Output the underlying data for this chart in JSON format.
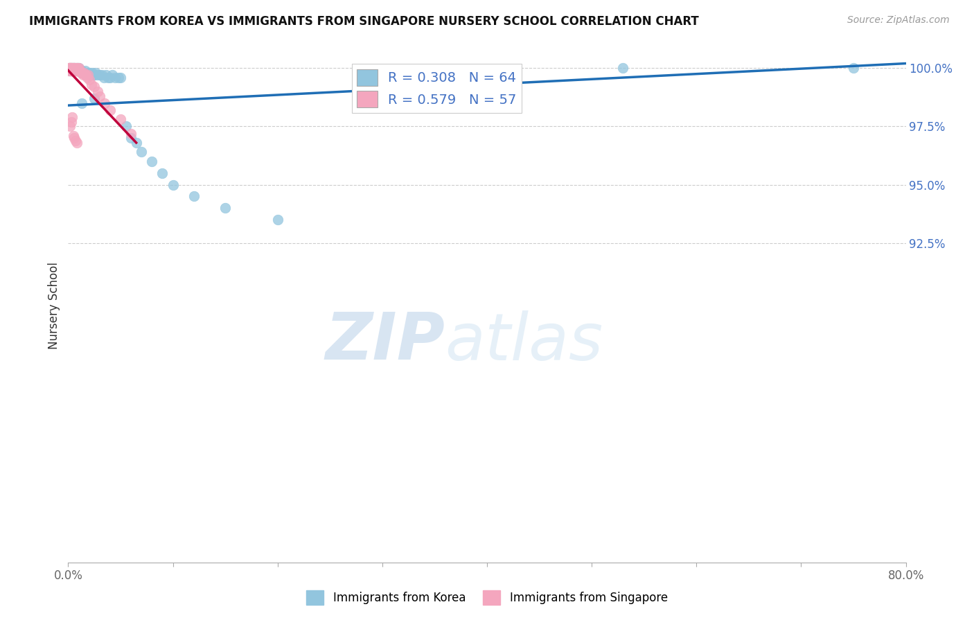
{
  "title": "IMMIGRANTS FROM KOREA VS IMMIGRANTS FROM SINGAPORE NURSERY SCHOOL CORRELATION CHART",
  "source_text": "Source: ZipAtlas.com",
  "ylabel": "Nursery School",
  "legend_label_korea": "Immigrants from Korea",
  "legend_label_singapore": "Immigrants from Singapore",
  "R_korea": "0.308",
  "N_korea": "64",
  "R_singapore": "0.579",
  "N_singapore": "57",
  "korea_scatter_color": "#92c5de",
  "singapore_scatter_color": "#f4a6be",
  "korea_line_color": "#1f6eb5",
  "singapore_line_color": "#c0003c",
  "text_blue": "#4472C4",
  "xmin": 0.0,
  "xmax": 0.8,
  "ymin": 0.788,
  "ymax": 1.008,
  "grid_yticks": [
    0.925,
    0.95,
    0.975,
    1.0
  ],
  "grid_ytick_labels": [
    "92.5%",
    "95.0%",
    "97.5%",
    "100.0%"
  ],
  "xtick_positions": [
    0.0,
    0.1,
    0.2,
    0.3,
    0.4,
    0.5,
    0.6,
    0.7,
    0.8
  ],
  "xtick_labels": [
    "0.0%",
    "",
    "",
    "",
    "",
    "",
    "",
    "",
    "80.0%"
  ],
  "watermark_zip": "ZIP",
  "watermark_atlas": "atlas",
  "korea_x": [
    0.001,
    0.002,
    0.002,
    0.003,
    0.003,
    0.003,
    0.004,
    0.004,
    0.005,
    0.005,
    0.005,
    0.006,
    0.006,
    0.007,
    0.007,
    0.008,
    0.008,
    0.008,
    0.009,
    0.009,
    0.01,
    0.01,
    0.011,
    0.012,
    0.013,
    0.013,
    0.014,
    0.015,
    0.016,
    0.017,
    0.018,
    0.019,
    0.02,
    0.021,
    0.022,
    0.023,
    0.024,
    0.025,
    0.026,
    0.028,
    0.03,
    0.032,
    0.034,
    0.036,
    0.038,
    0.04,
    0.042,
    0.045,
    0.048,
    0.05,
    0.055,
    0.06,
    0.065,
    0.07,
    0.08,
    0.09,
    0.1,
    0.12,
    0.15,
    0.2,
    0.53,
    0.75,
    0.013,
    0.025
  ],
  "korea_y": [
    0.999,
    0.999,
    1.0,
    0.999,
    0.999,
    1.0,
    0.999,
    1.0,
    0.999,
    0.999,
    1.0,
    0.999,
    1.0,
    0.999,
    1.0,
    0.999,
    0.999,
    1.0,
    0.999,
    1.0,
    0.999,
    1.0,
    0.999,
    0.999,
    0.998,
    0.999,
    0.998,
    0.998,
    0.999,
    0.998,
    0.998,
    0.998,
    0.997,
    0.998,
    0.997,
    0.998,
    0.997,
    0.997,
    0.998,
    0.997,
    0.997,
    0.997,
    0.996,
    0.997,
    0.996,
    0.996,
    0.997,
    0.996,
    0.996,
    0.996,
    0.975,
    0.97,
    0.968,
    0.964,
    0.96,
    0.955,
    0.95,
    0.945,
    0.94,
    0.935,
    1.0,
    1.0,
    0.985,
    0.987
  ],
  "singapore_x": [
    0.001,
    0.001,
    0.001,
    0.001,
    0.002,
    0.002,
    0.002,
    0.002,
    0.003,
    0.003,
    0.003,
    0.003,
    0.003,
    0.004,
    0.004,
    0.004,
    0.005,
    0.005,
    0.005,
    0.005,
    0.006,
    0.006,
    0.006,
    0.007,
    0.007,
    0.007,
    0.008,
    0.008,
    0.009,
    0.009,
    0.01,
    0.01,
    0.011,
    0.012,
    0.013,
    0.014,
    0.015,
    0.016,
    0.017,
    0.018,
    0.019,
    0.02,
    0.022,
    0.025,
    0.028,
    0.03,
    0.035,
    0.04,
    0.05,
    0.06,
    0.002,
    0.003,
    0.004,
    0.005,
    0.006,
    0.007,
    0.008
  ],
  "singapore_y": [
    1.0,
    1.0,
    1.0,
    0.999,
    1.0,
    1.0,
    0.999,
    1.0,
    1.0,
    0.999,
    1.0,
    0.999,
    1.0,
    0.999,
    1.0,
    0.999,
    1.0,
    0.999,
    1.0,
    0.999,
    1.0,
    0.999,
    1.0,
    0.999,
    1.0,
    0.999,
    1.0,
    0.999,
    1.0,
    0.999,
    1.0,
    0.999,
    0.999,
    0.998,
    0.998,
    0.997,
    0.998,
    0.997,
    0.997,
    0.996,
    0.997,
    0.995,
    0.993,
    0.992,
    0.99,
    0.988,
    0.985,
    0.982,
    0.978,
    0.972,
    0.975,
    0.977,
    0.979,
    0.971,
    0.97,
    0.969,
    0.968
  ],
  "korea_trend_x": [
    0.0,
    0.8
  ],
  "korea_trend_y": [
    0.984,
    1.002
  ],
  "singapore_trend_x": [
    0.0,
    0.065
  ],
  "singapore_trend_y": [
    0.999,
    0.968
  ]
}
